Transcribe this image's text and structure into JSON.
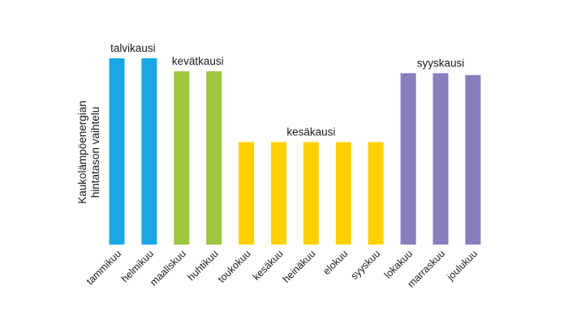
{
  "chart_data": {
    "type": "bar",
    "title": "",
    "xlabel": "",
    "ylabel_lines": [
      "Kaukolämpöenergian",
      "hintatason vaihtelu"
    ],
    "categories": [
      "tammikuu",
      "helmikuu",
      "maaliskuu",
      "huhtikuu",
      "toukokuu",
      "kesäkuu",
      "heinäkuu",
      "elokuu",
      "syyskuu",
      "lokakuu",
      "marraskuu",
      "joulukuu"
    ],
    "values": [
      100,
      100,
      93,
      93,
      55,
      55,
      55,
      55,
      55,
      92,
      92,
      91
    ],
    "ylim": [
      0,
      100
    ],
    "y_ticks_shown": false,
    "grid": false,
    "legend": "none",
    "seasons": [
      {
        "name": "talvikausi",
        "color": "#1aa7e6",
        "months": [
          0,
          1
        ]
      },
      {
        "name": "kevätkausi",
        "color": "#9cc63b",
        "months": [
          2,
          3
        ]
      },
      {
        "name": "kesäkausi",
        "color": "#ffd000",
        "months": [
          4,
          5,
          6,
          7,
          8
        ]
      },
      {
        "name": "syyskausi",
        "color": "#8a7dbc",
        "months": [
          9,
          10,
          11
        ]
      }
    ]
  }
}
